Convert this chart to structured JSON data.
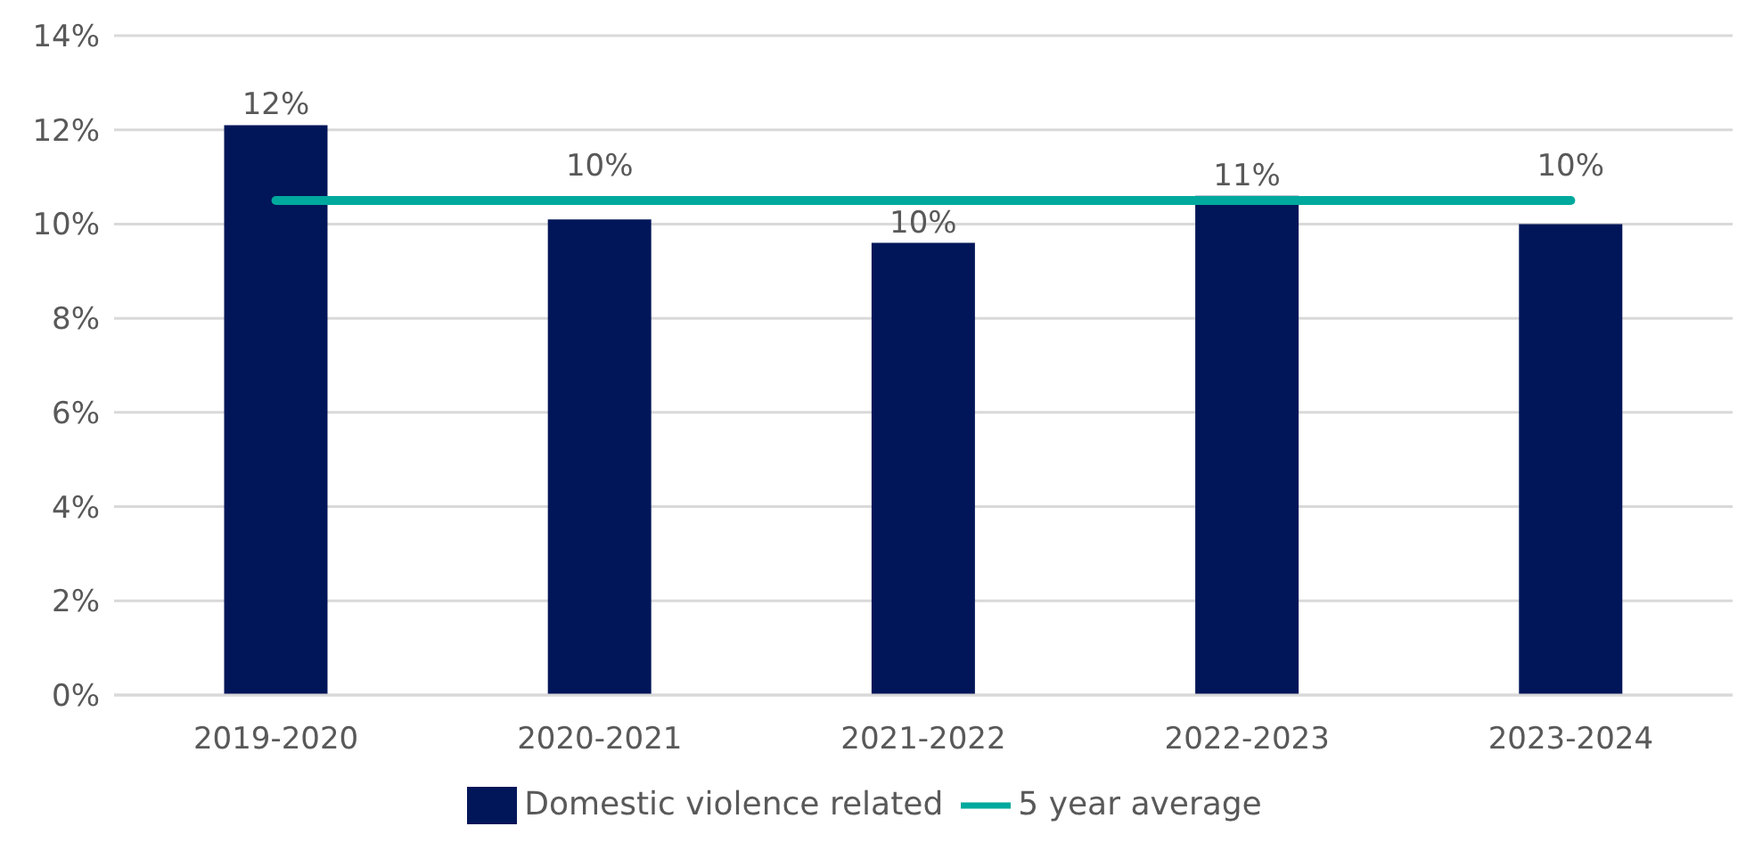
{
  "chart_data": {
    "type": "bar",
    "categories": [
      "2019-2020",
      "2020-2021",
      "2021-2022",
      "2022-2023",
      "2023-2024"
    ],
    "series": [
      {
        "name": "Domestic violence related",
        "color": "#001659",
        "values": [
          12.1,
          10.1,
          9.6,
          10.6,
          10.0
        ],
        "value_labels": [
          "12%",
          "10%",
          "10%",
          "11%",
          "10%"
        ]
      },
      {
        "name": "5 year average",
        "type": "line",
        "color": "#00a99d",
        "values": [
          10.5,
          10.5,
          10.5,
          10.5,
          10.5
        ],
        "marker": "none"
      }
    ],
    "ylim": [
      0,
      14
    ],
    "yticks": [
      {
        "value": 0,
        "label": "0%"
      },
      {
        "value": 2,
        "label": "2%"
      },
      {
        "value": 4,
        "label": "4%"
      },
      {
        "value": 6,
        "label": "6%"
      },
      {
        "value": 8,
        "label": "8%"
      },
      {
        "value": 10,
        "label": "10%"
      },
      {
        "value": 12,
        "label": "12%"
      },
      {
        "value": 14,
        "label": "14%"
      }
    ],
    "grid": "y",
    "legend": "bottom"
  }
}
